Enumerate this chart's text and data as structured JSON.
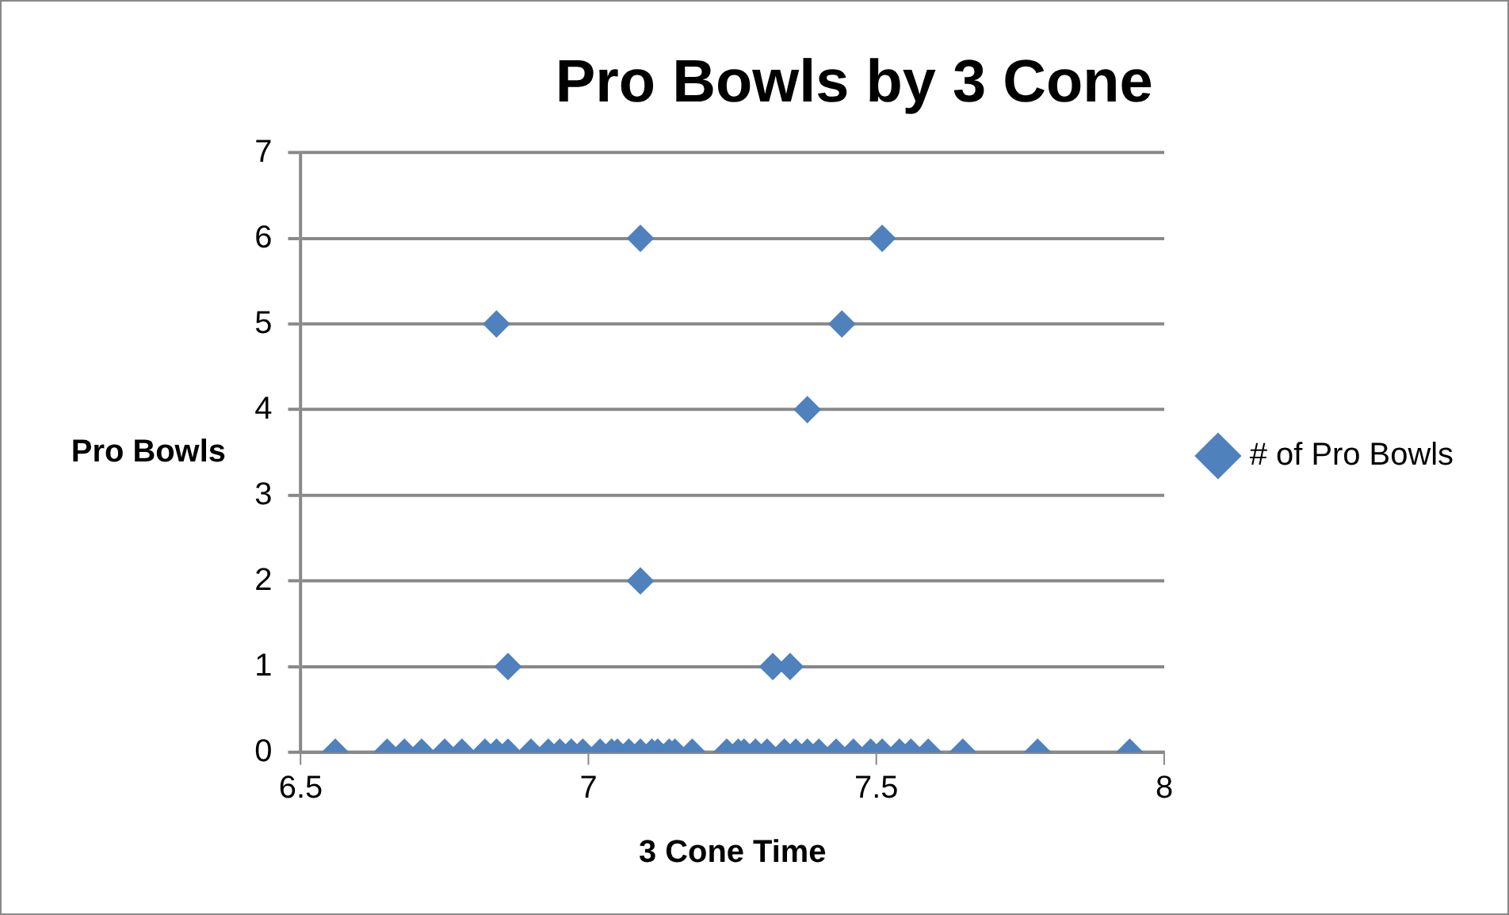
{
  "chart_data": {
    "type": "scatter",
    "title": "Pro Bowls by 3 Cone",
    "xlabel": "3 Cone Time",
    "ylabel": "Pro Bowls",
    "xlim": [
      6.5,
      8
    ],
    "xticks": [
      6.5,
      7,
      7.5,
      8
    ],
    "ylim": [
      0,
      7
    ],
    "yticks": [
      0,
      1,
      2,
      3,
      4,
      5,
      6,
      7
    ],
    "grid": "y",
    "legend": "right",
    "marker": "diamond",
    "series": [
      {
        "name": "# of Pro Bowls",
        "color": "#4f81bd",
        "x": [
          7.09,
          7.51,
          6.84,
          7.44,
          7.38,
          7.09,
          6.86,
          7.32,
          7.35,
          6.56,
          6.65,
          6.68,
          6.71,
          6.75,
          6.78,
          6.82,
          6.84,
          6.86,
          6.9,
          6.93,
          6.95,
          6.97,
          6.99,
          7.02,
          7.04,
          7.05,
          7.07,
          7.09,
          7.11,
          7.12,
          7.14,
          7.15,
          7.18,
          7.24,
          7.26,
          7.27,
          7.29,
          7.31,
          7.34,
          7.36,
          7.38,
          7.4,
          7.43,
          7.46,
          7.49,
          7.51,
          7.54,
          7.56,
          7.59,
          7.65,
          7.78,
          7.94
        ],
        "values": [
          6,
          6,
          5,
          5,
          4,
          2,
          1,
          1,
          1,
          0,
          0,
          0,
          0,
          0,
          0,
          0,
          0,
          0,
          0,
          0,
          0,
          0,
          0,
          0,
          0,
          0,
          0,
          0,
          0,
          0,
          0,
          0,
          0,
          0,
          0,
          0,
          0,
          0,
          0,
          0,
          0,
          0,
          0,
          0,
          0,
          0,
          0,
          0,
          0,
          0,
          0,
          0
        ]
      }
    ]
  }
}
